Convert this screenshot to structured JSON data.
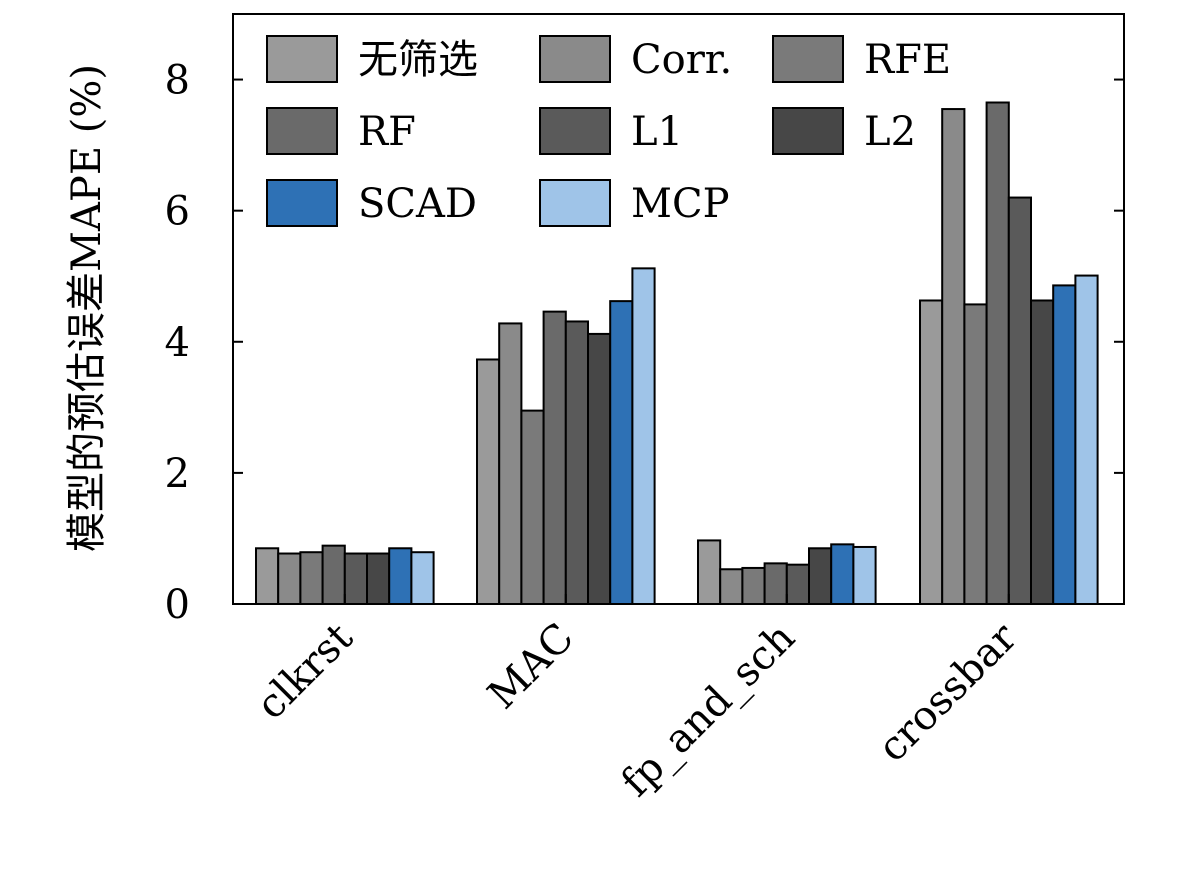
{
  "chart_data": {
    "type": "bar",
    "categories": [
      "clkrst",
      "MAC",
      "fp_and_sch",
      "crossbar"
    ],
    "ylabel": "模型的预估误差MAPE (%)",
    "xlabel": "",
    "ylim": [
      0,
      9
    ],
    "yticks": [
      0,
      2,
      4,
      6,
      8
    ],
    "grid": false,
    "legend_position": "top-left",
    "legend_columns": 3,
    "series": [
      {
        "name": "无筛选",
        "color": "#9a9a9a",
        "values": [
          0.85,
          3.73,
          0.97,
          4.63
        ]
      },
      {
        "name": "Corr.",
        "color": "#8a8a8a",
        "values": [
          0.77,
          4.28,
          0.53,
          7.55
        ]
      },
      {
        "name": "RFE",
        "color": "#7a7a7a",
        "values": [
          0.79,
          2.95,
          0.55,
          4.57
        ]
      },
      {
        "name": "RF",
        "color": "#6a6a6a",
        "values": [
          0.89,
          4.46,
          0.62,
          7.65
        ]
      },
      {
        "name": "L1",
        "color": "#5a5a5a",
        "values": [
          0.77,
          4.31,
          0.6,
          6.2
        ]
      },
      {
        "name": "L2",
        "color": "#474747",
        "values": [
          0.77,
          4.12,
          0.85,
          4.63
        ]
      },
      {
        "name": "SCAD",
        "color": "#2e71b5",
        "values": [
          0.85,
          4.62,
          0.91,
          4.86
        ]
      },
      {
        "name": "MCP",
        "color": "#9fc4e8",
        "values": [
          0.79,
          5.12,
          0.87,
          5.01
        ]
      }
    ]
  }
}
